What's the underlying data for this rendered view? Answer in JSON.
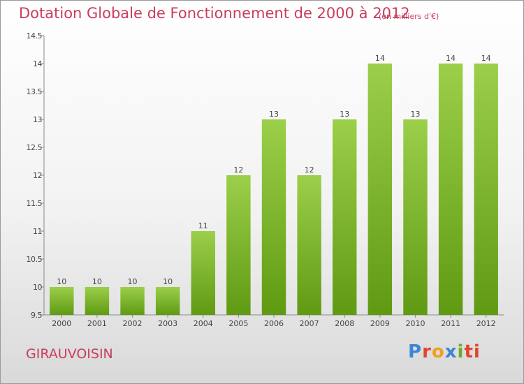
{
  "chart_data": {
    "type": "bar",
    "title": "Dotation Globale de Fonctionnement de 2000 à 2012",
    "subtitle": "(en milliers d'€)",
    "xlabel": "",
    "ylabel": "",
    "categories": [
      "2000",
      "2001",
      "2002",
      "2003",
      "2004",
      "2005",
      "2006",
      "2007",
      "2008",
      "2009",
      "2010",
      "2011",
      "2012"
    ],
    "values": [
      10,
      10,
      10,
      10,
      11,
      12,
      13,
      12,
      13,
      14,
      13,
      14,
      14
    ],
    "data_labels": [
      "10",
      "10",
      "10",
      "10",
      "11",
      "12",
      "13",
      "12",
      "13",
      "14",
      "13",
      "14",
      "14"
    ],
    "ylim": [
      9.5,
      14.5
    ],
    "yticks": [
      9.5,
      10,
      10.5,
      11,
      11.5,
      12,
      12.5,
      13,
      13.5,
      14,
      14.5
    ],
    "ytick_labels": [
      "9.5",
      "10",
      "10.5",
      "11",
      "11.5",
      "12",
      "12.5",
      "13",
      "13.5",
      "14",
      "14.5"
    ],
    "grid": false,
    "legend": "none",
    "colors": {
      "bar_top": "#9ccf4a",
      "bar_bottom": "#5f9a12",
      "axis": "#888888",
      "label": "#444444"
    }
  },
  "footer": {
    "commune": "GIRAUVOISIN",
    "logo_letters": [
      "P",
      "r",
      "o",
      "x",
      "i",
      "ti"
    ]
  },
  "colors": {
    "accent": "#ca3b5e"
  }
}
